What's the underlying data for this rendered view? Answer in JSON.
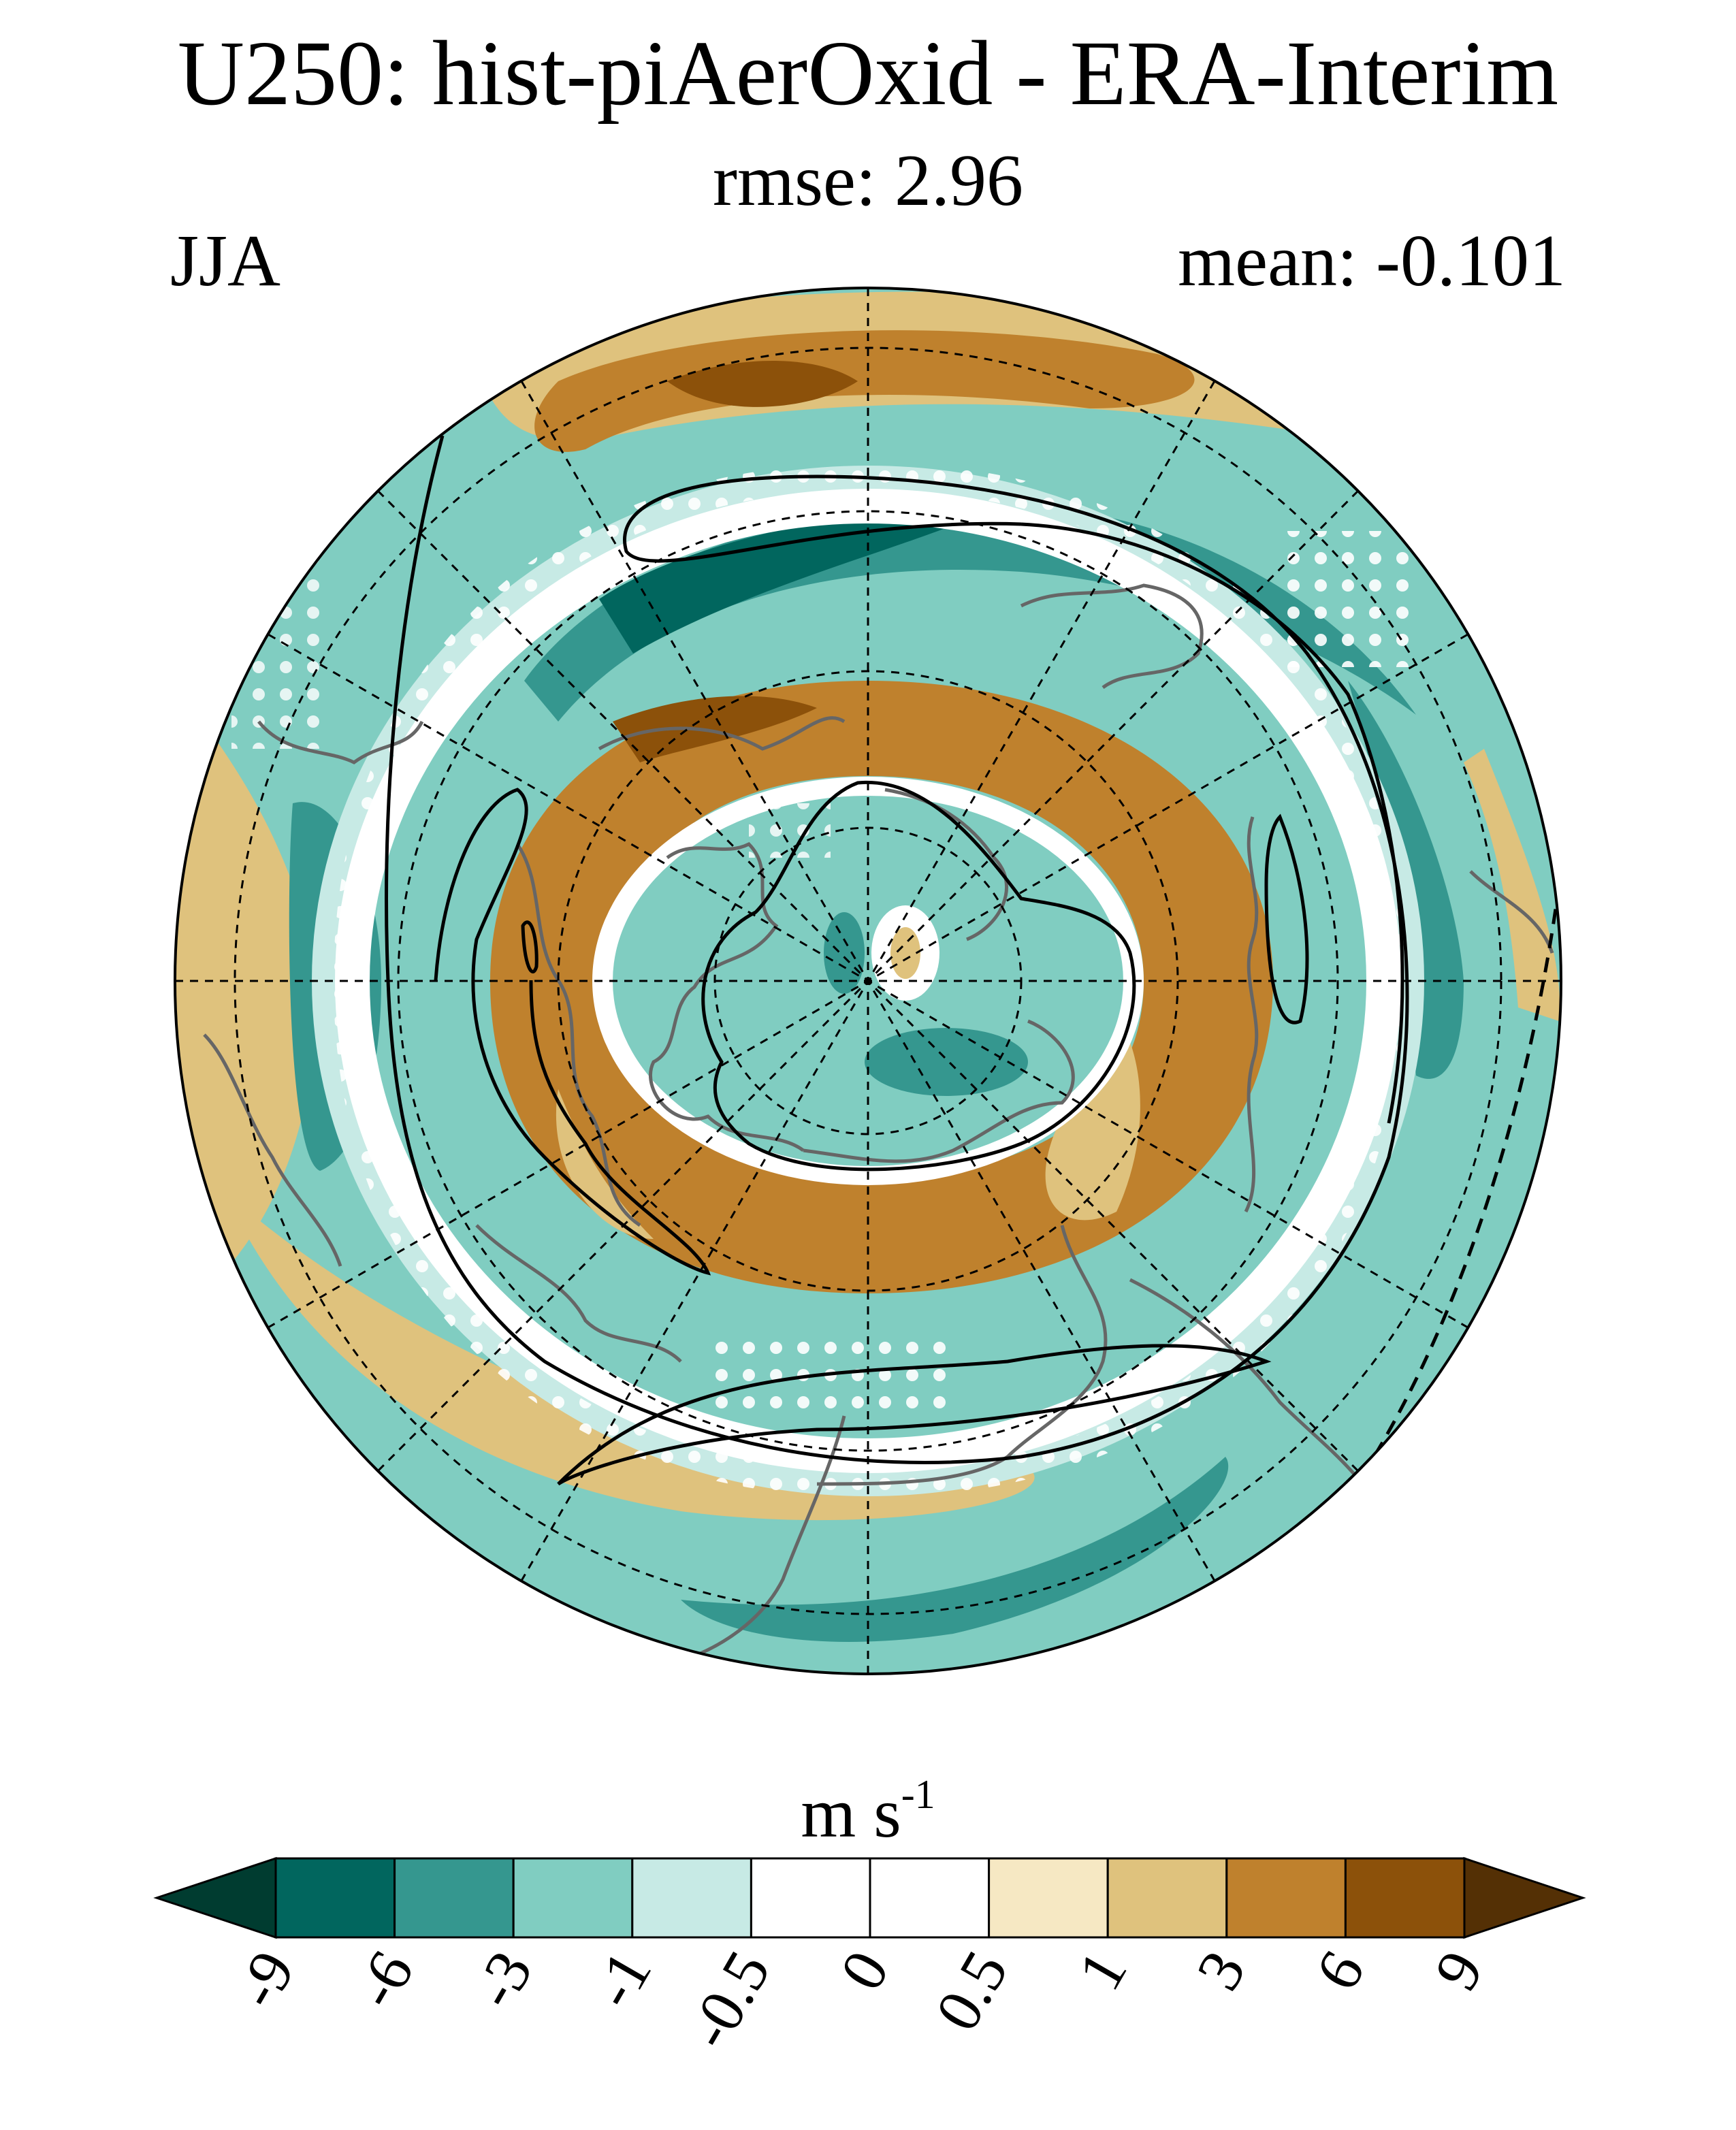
{
  "title": "U250: hist-piAerOxid - ERA-Interim",
  "rmse": "rmse: 2.96",
  "season": "JJA",
  "mean": "mean: -0.101",
  "colorbar": {
    "units_main": "m s",
    "units_exp": "-1",
    "levels": [
      "-9",
      "-6",
      "-3",
      "-1",
      "-0.5",
      "0",
      "0.5",
      "1",
      "3",
      "6",
      "9"
    ],
    "colors": [
      "#003c30",
      "#01665e",
      "#35978f",
      "#80cdc1",
      "#c7eae5",
      "#ffffff",
      "#ffffff",
      "#f6e8c3",
      "#dfc27d",
      "#bf812d",
      "#8c510a",
      "#543005"
    ]
  },
  "map": {
    "projection": "north polar stereographic",
    "ocean_color": "#ffffff",
    "coast_color": "#666666",
    "contour_color": "#000000"
  }
}
